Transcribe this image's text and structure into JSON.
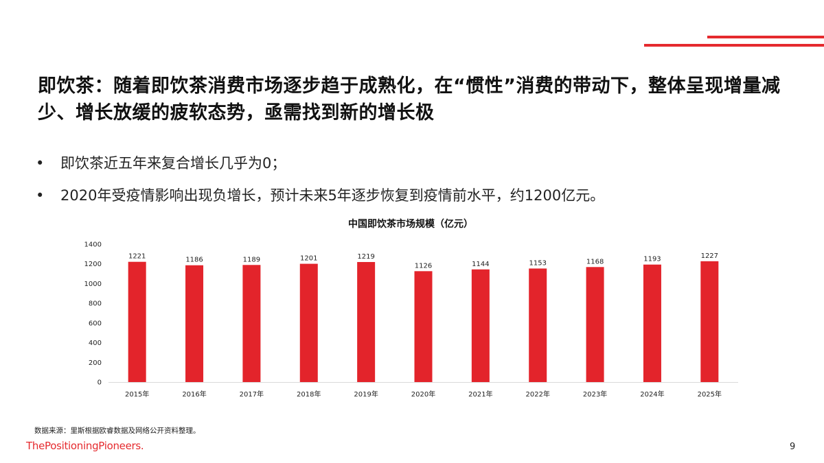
{
  "slide": {
    "title": "即饮茶：随着即饮茶消费市场逐步趋于成熟化，在“惯性”消费的带动下，整体呈现增量减少、增长放缓的疲软态势，亟需找到新的增长极",
    "bullets": [
      "即饮茶近五年来复合增长几乎为0；",
      "2020年受疫情影响出现负增长，预计未来5年逐步恢复到疫情前水平，约1200亿元。"
    ],
    "bullet_symbol": "•",
    "source": "数据来源：里斯根据欧睿数据及网络公开资料整理。",
    "brand": "ThePositioningPioneers.",
    "page_number": "9",
    "accent_color": "#e52a2e"
  },
  "chart_data": {
    "type": "bar",
    "title": "中国即饮茶市场规模（亿元）",
    "categories": [
      "2015年",
      "2016年",
      "2017年",
      "2018年",
      "2019年",
      "2020年",
      "2021年",
      "2022年",
      "2023年",
      "2024年",
      "2025年"
    ],
    "values": [
      1221,
      1186,
      1189,
      1201,
      1219,
      1126,
      1144,
      1153,
      1168,
      1193,
      1227
    ],
    "ylim": [
      0,
      1400
    ],
    "yticks": [
      0,
      200,
      400,
      600,
      800,
      1000,
      1200,
      1400
    ],
    "xlabel": "",
    "ylabel": "",
    "bar_color": "#e3242b",
    "grid": false,
    "legend": false
  }
}
